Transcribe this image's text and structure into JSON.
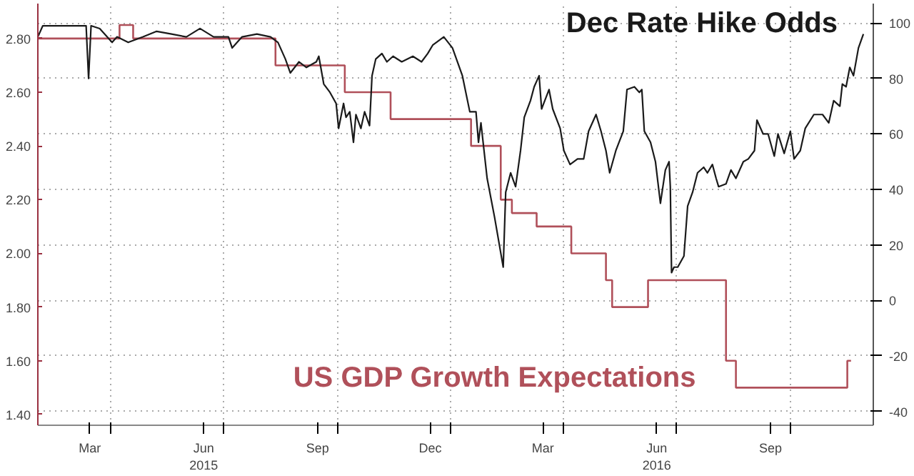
{
  "chart_data": {
    "type": "line",
    "xlim": [
      "2015-02-01",
      "2016-12-07"
    ],
    "xticks": [
      {
        "value": "2015-03-15",
        "label": "Mar"
      },
      {
        "value": "2015-04-01",
        "label": null
      },
      {
        "value": "2015-06-15",
        "label": "Jun\n2015"
      },
      {
        "value": "2015-07-01",
        "label": null
      },
      {
        "value": "2015-09-15",
        "label": "Sep"
      },
      {
        "value": "2015-10-01",
        "label": null
      },
      {
        "value": "2015-12-15",
        "label": "Dec"
      },
      {
        "value": "2016-01-01",
        "label": null
      },
      {
        "value": "2016-03-15",
        "label": "Mar"
      },
      {
        "value": "2016-04-01",
        "label": null
      },
      {
        "value": "2016-06-15",
        "label": "Jun\n2016"
      },
      {
        "value": "2016-07-01",
        "label": null
      },
      {
        "value": "2016-09-15",
        "label": "Sep"
      },
      {
        "value": "2016-10-01",
        "label": null
      }
    ],
    "ylim": [
      1.36,
      2.93
    ],
    "yticks": [
      {
        "value": 1.4,
        "label": "1.40"
      },
      {
        "value": 1.6,
        "label": "1.60"
      },
      {
        "value": 1.8,
        "label": "1.80"
      },
      {
        "value": 2.0,
        "label": "2.00"
      },
      {
        "value": 2.2,
        "label": "2.20"
      },
      {
        "value": 2.4,
        "label": "2.40"
      },
      {
        "value": 2.6,
        "label": "2.60"
      },
      {
        "value": 2.8,
        "label": "2.80"
      }
    ],
    "y2lim": [
      -45,
      107
    ],
    "y2ticks": [
      -40,
      -20,
      0,
      20,
      40,
      60,
      80,
      100
    ],
    "grid": true,
    "series": [
      {
        "name": "US GDP Growth Expectations",
        "type": "step",
        "color": "#b0505a",
        "x": [
          "2015-02-01",
          "2015-04-08",
          "2015-04-19",
          "2015-08-12",
          "2015-10-07",
          "2015-11-13",
          "2016-01-17",
          "2016-02-10",
          "2016-02-19",
          "2016-03-10",
          "2016-04-07",
          "2016-05-05",
          "2016-05-10",
          "2016-06-08",
          "2016-08-10",
          "2016-08-18",
          "2016-11-16",
          "2016-11-19"
        ],
        "values": [
          2.8,
          2.85,
          2.8,
          2.7,
          2.6,
          2.5,
          2.4,
          2.2,
          2.15,
          2.1,
          2.0,
          1.9,
          1.8,
          1.9,
          1.6,
          1.5,
          1.6,
          1.6
        ]
      },
      {
        "name": "Dec Rate Hike Odds",
        "axis": "y2",
        "color": "#1a1a1a",
        "x": [
          "2015-02-01",
          "2015-02-05",
          "2015-03-12",
          "2015-03-14",
          "2015-03-16",
          "2015-03-23",
          "2015-04-02",
          "2015-04-06",
          "2015-04-15",
          "2015-04-27",
          "2015-05-08",
          "2015-05-20",
          "2015-06-01",
          "2015-06-12",
          "2015-06-23",
          "2015-07-05",
          "2015-07-08",
          "2015-07-16",
          "2015-07-28",
          "2015-08-08",
          "2015-08-14",
          "2015-08-20",
          "2015-08-24",
          "2015-08-31",
          "2015-09-06",
          "2015-09-14",
          "2015-09-16",
          "2015-09-20",
          "2015-09-25",
          "2015-09-30",
          "2015-10-02",
          "2015-10-06",
          "2015-10-08",
          "2015-10-11",
          "2015-10-14",
          "2015-10-16",
          "2015-10-20",
          "2015-10-23",
          "2015-10-27",
          "2015-10-29",
          "2015-11-01",
          "2015-11-06",
          "2015-11-10",
          "2015-11-15",
          "2015-11-22",
          "2015-12-01",
          "2015-12-08",
          "2015-12-13",
          "2015-12-17",
          "2015-12-26",
          "2016-01-02",
          "2016-01-10",
          "2016-01-16",
          "2016-01-21",
          "2016-01-23",
          "2016-01-25",
          "2016-01-30",
          "2016-02-05",
          "2016-02-12",
          "2016-02-14",
          "2016-02-18",
          "2016-02-22",
          "2016-02-26",
          "2016-02-29",
          "2016-03-05",
          "2016-03-08",
          "2016-03-12",
          "2016-03-14",
          "2016-03-20",
          "2016-03-23",
          "2016-03-29",
          "2016-04-01",
          "2016-04-06",
          "2016-04-12",
          "2016-04-17",
          "2016-04-21",
          "2016-04-27",
          "2016-05-01",
          "2016-05-05",
          "2016-05-08",
          "2016-05-13",
          "2016-05-19",
          "2016-05-22",
          "2016-05-28",
          "2016-06-01",
          "2016-06-03",
          "2016-06-05",
          "2016-06-10",
          "2016-06-14",
          "2016-06-18",
          "2016-06-22",
          "2016-06-25",
          "2016-06-26",
          "2016-06-27",
          "2016-06-29",
          "2016-07-02",
          "2016-07-07",
          "2016-07-10",
          "2016-07-14",
          "2016-07-18",
          "2016-07-23",
          "2016-07-26",
          "2016-07-30",
          "2016-08-02",
          "2016-08-04",
          "2016-08-10",
          "2016-08-14",
          "2016-08-18",
          "2016-08-24",
          "2016-08-28",
          "2016-09-02",
          "2016-09-04",
          "2016-09-09",
          "2016-09-13",
          "2016-09-18",
          "2016-09-21",
          "2016-09-26",
          "2016-10-01",
          "2016-10-04",
          "2016-10-09",
          "2016-10-13",
          "2016-10-20",
          "2016-10-27",
          "2016-11-01",
          "2016-11-05",
          "2016-11-10",
          "2016-11-12",
          "2016-11-15",
          "2016-11-18",
          "2016-11-21",
          "2016-11-25",
          "2016-11-29"
        ],
        "values": [
          95,
          99,
          99,
          80,
          99,
          98,
          93,
          95,
          93,
          95,
          97,
          96,
          95,
          98,
          95,
          95,
          91,
          95,
          96,
          95,
          93,
          87,
          82,
          86,
          84,
          86,
          88,
          78,
          75,
          71,
          62,
          71,
          66,
          68,
          57,
          67,
          62,
          68,
          63,
          81,
          87,
          89,
          86,
          88,
          86,
          88,
          86,
          89,
          92,
          95,
          91,
          81,
          68,
          68,
          57,
          64,
          44,
          30,
          12,
          39,
          46,
          41,
          54,
          66,
          72,
          77,
          81,
          69,
          76,
          69,
          62,
          54,
          49,
          51,
          51,
          61,
          67,
          61,
          54,
          46,
          54,
          61,
          76,
          77,
          75,
          76,
          61,
          57,
          50,
          35,
          47,
          50,
          41,
          10,
          12,
          12,
          16,
          34,
          39,
          46,
          48,
          46,
          49,
          44,
          41,
          42,
          47,
          44,
          50,
          51,
          54,
          65,
          60,
          60,
          52,
          60,
          53,
          61,
          51,
          54,
          62,
          67,
          67,
          64,
          72,
          70,
          78,
          77,
          84,
          81,
          91,
          96
        ]
      }
    ]
  }
}
